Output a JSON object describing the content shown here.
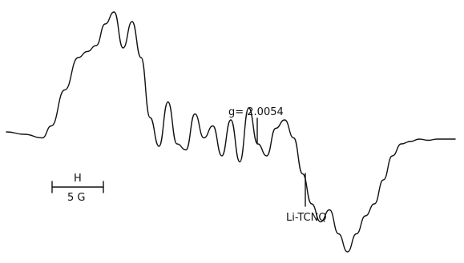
{
  "chart_data": {
    "type": "line",
    "title": "",
    "xlabel": "",
    "ylabel": "",
    "grid": false,
    "legend": "none",
    "line_color": "#111111",
    "series": [
      {
        "x": [
          0,
          4,
          8,
          10,
          13,
          16,
          18,
          20,
          22,
          24,
          26,
          28,
          30,
          32,
          34,
          36,
          38,
          40,
          42,
          44,
          46,
          48,
          50,
          52,
          54,
          56,
          58,
          60,
          62,
          64,
          66,
          68,
          70,
          72,
          74,
          76,
          78,
          80,
          82,
          84,
          86,
          88,
          90,
          92,
          94,
          96,
          98,
          100
        ],
        "y": [
          0.0,
          -0.02,
          -0.05,
          0.05,
          0.35,
          0.62,
          0.67,
          0.72,
          0.9,
          1.0,
          0.7,
          0.92,
          0.62,
          0.12,
          -0.12,
          0.25,
          -0.1,
          -0.15,
          0.15,
          -0.05,
          0.05,
          -0.2,
          0.1,
          -0.25,
          0.2,
          -0.1,
          -0.2,
          0.03,
          0.1,
          -0.05,
          -0.35,
          -0.6,
          -0.75,
          -0.65,
          -0.85,
          -1.0,
          -0.85,
          -0.7,
          -0.6,
          -0.4,
          -0.2,
          -0.1,
          -0.08,
          -0.06,
          -0.07,
          -0.06,
          -0.06,
          -0.06
        ]
      }
    ],
    "annotations": {
      "g_value": "g= 2.0054",
      "marker": "Li-TCNQ",
      "scale_letter": "H",
      "scale_value": "5 G"
    }
  }
}
